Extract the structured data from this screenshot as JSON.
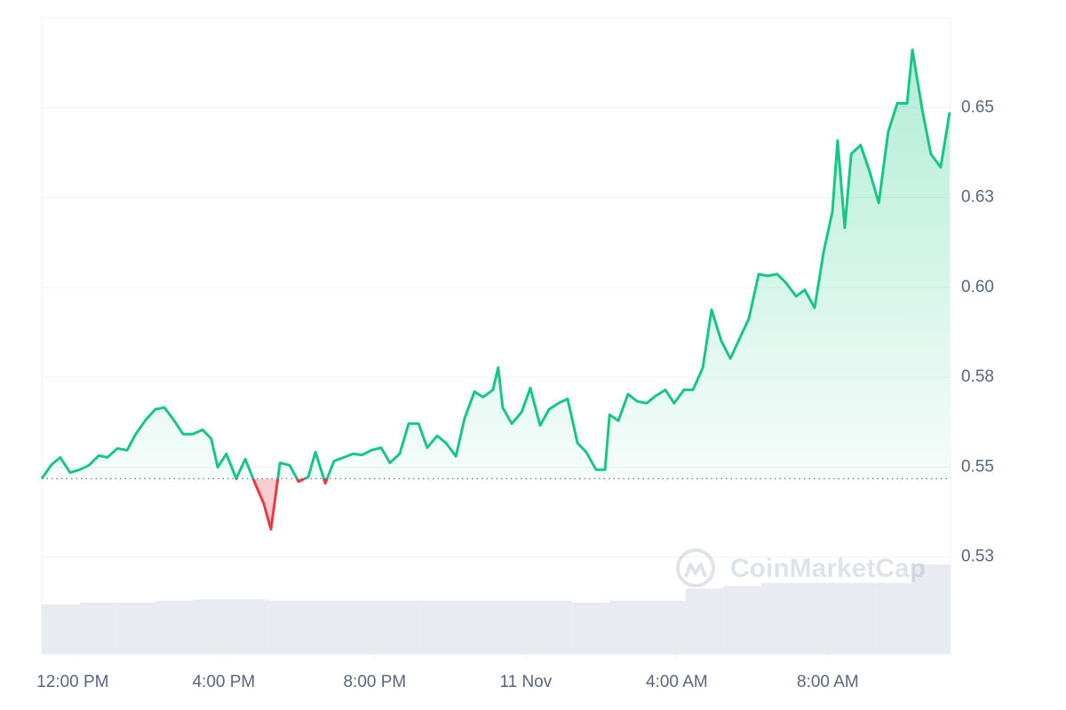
{
  "chart_data": {
    "type": "line",
    "x": [
      11.18,
      11.44,
      11.67,
      11.93,
      12.19,
      12.43,
      12.69,
      12.92,
      13.18,
      13.44,
      13.67,
      13.93,
      14.19,
      14.43,
      14.69,
      14.92,
      15.18,
      15.44,
      15.67,
      15.84,
      16.07,
      16.33,
      16.57,
      16.83,
      17.06,
      17.25,
      17.49,
      17.75,
      17.98,
      18.24,
      18.43,
      18.69,
      18.92,
      19.18,
      19.42,
      19.67,
      19.91,
      20.17,
      20.4,
      20.66,
      20.9,
      21.16,
      21.39,
      21.65,
      21.89,
      22.15,
      22.38,
      22.64,
      22.87,
      23.13,
      23.27,
      23.39,
      23.63,
      23.89,
      24.12,
      24.38,
      24.62,
      24.87,
      25.11,
      25.37,
      25.6,
      25.86,
      26.1,
      26.22,
      26.45,
      26.71,
      26.95,
      27.2,
      27.44,
      27.7,
      27.93,
      28.19,
      28.43,
      28.69,
      28.92,
      29.18,
      29.42,
      29.67,
      29.91,
      30.17,
      30.4,
      30.66,
      30.9,
      31.16,
      31.39,
      31.65,
      31.89,
      32.12,
      32.26,
      32.45,
      32.62,
      32.87,
      33.11,
      33.35,
      33.6,
      33.84,
      34.1,
      34.24,
      34.5,
      34.73,
      34.99,
      35.23
    ],
    "values": [
      0.5468,
      0.5507,
      0.5527,
      0.5485,
      0.5493,
      0.5505,
      0.5532,
      0.5527,
      0.5552,
      0.5547,
      0.5592,
      0.5631,
      0.5661,
      0.5666,
      0.5629,
      0.5592,
      0.5592,
      0.5604,
      0.5579,
      0.55,
      0.5537,
      0.5468,
      0.5522,
      0.5455,
      0.5399,
      0.5327,
      0.5512,
      0.5505,
      0.546,
      0.5473,
      0.5542,
      0.5455,
      0.5517,
      0.5527,
      0.5537,
      0.5534,
      0.5547,
      0.5554,
      0.5512,
      0.5537,
      0.5621,
      0.5621,
      0.5554,
      0.5587,
      0.5567,
      0.553,
      0.5636,
      0.571,
      0.5695,
      0.5715,
      0.5777,
      0.5666,
      0.5621,
      0.5653,
      0.572,
      0.5616,
      0.5661,
      0.5678,
      0.569,
      0.5567,
      0.5542,
      0.5493,
      0.5493,
      0.5646,
      0.5629,
      0.5703,
      0.5683,
      0.5678,
      0.5698,
      0.5715,
      0.5678,
      0.5715,
      0.5715,
      0.5777,
      0.5938,
      0.5851,
      0.5802,
      0.5859,
      0.5913,
      0.6037,
      0.6032,
      0.6037,
      0.6012,
      0.5975,
      0.5993,
      0.5943,
      0.6099,
      0.621,
      0.6408,
      0.6166,
      0.6371,
      0.6396,
      0.6322,
      0.6235,
      0.6433,
      0.6512,
      0.6512,
      0.6661,
      0.6495,
      0.6371,
      0.6334,
      0.6487
    ],
    "color": "#16c784",
    "down_color": "#ea3943",
    "xlim": [
      11.18,
      35.25
    ],
    "xticks": [
      {
        "value": 12,
        "label": "12:00 PM"
      },
      {
        "value": 16,
        "label": "4:00 PM"
      },
      {
        "value": 20,
        "label": "8:00 PM"
      },
      {
        "value": 24,
        "label": "11 Nov"
      },
      {
        "value": 28,
        "label": "4:00 AM"
      },
      {
        "value": 32,
        "label": "8:00 AM"
      }
    ],
    "ylim": [
      0.498,
      0.675
    ],
    "yticks": [
      {
        "value": 0.525,
        "label": "0.53"
      },
      0.55,
      {
        "value": 0.575,
        "label": "0.58"
      },
      {
        "value": 0.6,
        "label": "0.60"
      },
      {
        "value": 0.625,
        "label": "0.63"
      },
      0.65
    ],
    "grid": true,
    "volume": {
      "color": "#e8ebef",
      "values": [
        7.8,
        8.1,
        8.1,
        8.4,
        8.6,
        8.6,
        8.4,
        8.4,
        8.4,
        8.4,
        8.4,
        8.4,
        8.4,
        8.4,
        8.1,
        8.4,
        8.4,
        10.3,
        10.7,
        11.2,
        11.2,
        11.2,
        11.2,
        14.1
      ],
      "lim": [
        0,
        100
      ]
    },
    "watermark": "CoinMarketCap"
  }
}
